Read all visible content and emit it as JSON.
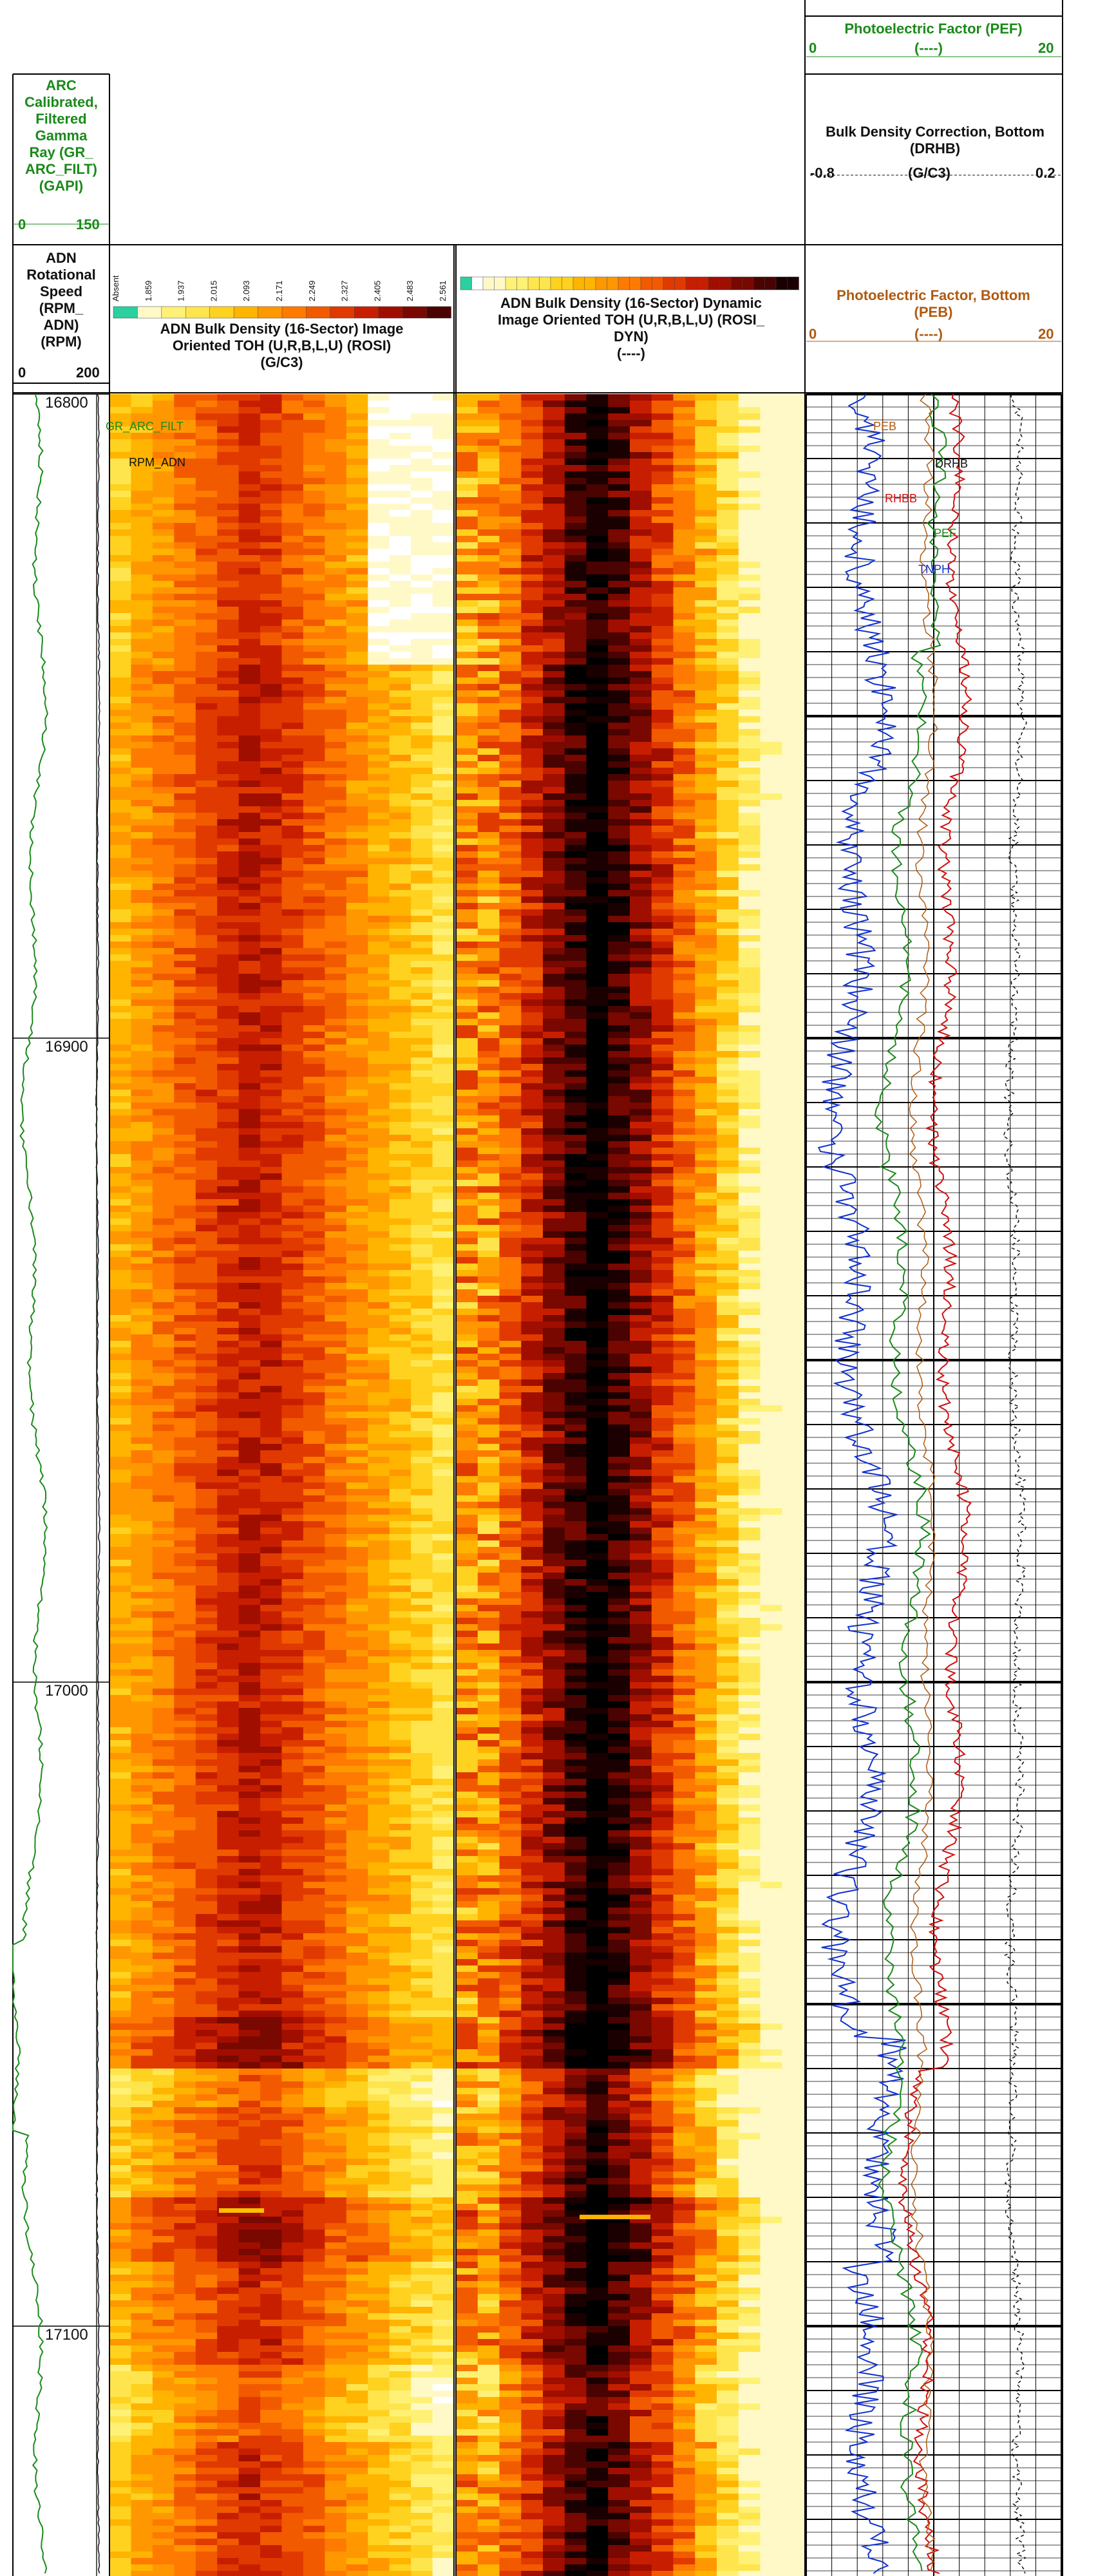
{
  "headers": {
    "gamma": {
      "lines": [
        "ARC",
        "Calibrated,",
        "Filtered",
        "Gamma",
        "Ray (GR_",
        "ARC_FILT)",
        "(GAPI)"
      ],
      "min": "0",
      "max": "150",
      "color": "#1a8a1a"
    },
    "rpm": {
      "lines": [
        "ADN",
        "Rotational",
        "Speed",
        "(RPM_",
        "ADN)",
        "(RPM)"
      ],
      "min": "0",
      "max": "200"
    },
    "rosi": {
      "lines": [
        "ADN Bulk Density (16-Sector) Image",
        "Oriented TOH (U,R,B,L,U) (ROSI)",
        "(G/C3)"
      ],
      "ticks": [
        "Absent",
        "1.859",
        "1.937",
        "2.015",
        "2.093",
        "2.171",
        "2.249",
        "2.327",
        "2.405",
        "2.483",
        "2.561"
      ]
    },
    "rosi_dyn": {
      "lines": [
        "ADN Bulk Density (16-Sector) Dynamic",
        "Image Oriented TOH (U,R,B,L,U) (ROSI_",
        "DYN)",
        "(----)"
      ]
    },
    "pef": {
      "lines": [
        "Photoelectric Factor (PEF)"
      ],
      "min": "0",
      "units": "(----)",
      "max": "20",
      "color": "#1a8a1a"
    },
    "drhb": {
      "lines": [
        "Bulk Density Correction, Bottom",
        "(DRHB)"
      ],
      "min": "-0.8",
      "units": "(G/C3)",
      "max": "0.2"
    },
    "peb": {
      "lines": [
        "Photoelectric Factor, Bottom",
        "(PEB)"
      ],
      "min": "0",
      "units": "(----)",
      "max": "20",
      "color": "#b05a10"
    }
  },
  "depths": [
    "16800",
    "16900",
    "17000",
    "17100"
  ],
  "curve_tags": [
    {
      "text": "GR_ARC_FILT",
      "color": "#1a8a1a"
    },
    {
      "text": "RPM_ADN",
      "color": "#111111"
    },
    {
      "text": "PEB",
      "color": "#b05a10"
    },
    {
      "text": "DRHB",
      "color": "#111111"
    },
    {
      "text": "RHBB",
      "color": "#d01010"
    },
    {
      "text": "PEF",
      "color": "#1a8a1a"
    },
    {
      "text": "TNPH",
      "color": "#1030d0"
    }
  ],
  "chart_data": {
    "type": "well-log",
    "depth_range": [
      16800,
      17138
    ],
    "depth_ticks": [
      16800,
      16900,
      17000,
      17100
    ],
    "tracks": [
      {
        "name": "GR_ARC_FILT",
        "units": "GAPI",
        "range": [
          0,
          150
        ],
        "color": "#1a8a1a"
      },
      {
        "name": "RPM_ADN",
        "units": "RPM",
        "range": [
          0,
          200
        ]
      },
      {
        "name": "ROSI",
        "units": "G/C3",
        "type": "image",
        "range": [
          1.859,
          2.561
        ]
      },
      {
        "name": "ROSI_DYN",
        "units": "----",
        "type": "image"
      },
      {
        "name": "PEF",
        "units": "----",
        "range": [
          0,
          20
        ],
        "color": "#1a8a1a"
      },
      {
        "name": "DRHB",
        "units": "G/C3",
        "range": [
          -0.8,
          0.2
        ],
        "color": "#111111"
      },
      {
        "name": "PEB",
        "units": "----",
        "range": [
          0,
          20
        ],
        "color": "#b05a10"
      },
      {
        "name": "RHBB",
        "color": "#d01010"
      },
      {
        "name": "TNPH",
        "color": "#1030d0"
      }
    ],
    "palette": [
      "#ffffff",
      "#fff9c8",
      "#fff176",
      "#ffe54d",
      "#ffd21f",
      "#ffb400",
      "#ff9800",
      "#ff7a00",
      "#f25a00",
      "#e03a00",
      "#c81e00",
      "#a00e00",
      "#780800",
      "#4a0300",
      "#1a0000",
      "#000000"
    ]
  }
}
